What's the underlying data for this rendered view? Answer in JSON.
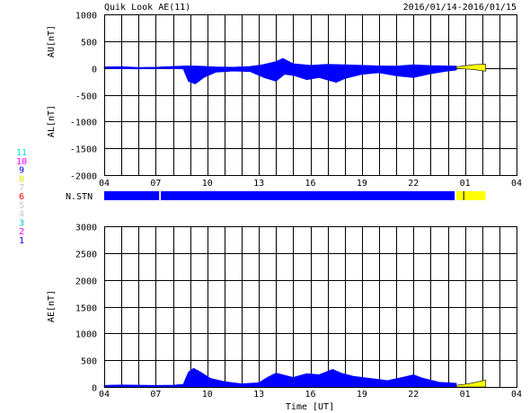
{
  "header": {
    "title": "Quik Look AE(11)",
    "date_range": "2016/01/14-2016/01/15"
  },
  "station_legend": [
    {
      "label": "11",
      "color": "#00e5e5"
    },
    {
      "label": "10",
      "color": "#ff00ff"
    },
    {
      "label": "9",
      "color": "#0000ff"
    },
    {
      "label": "8",
      "color": "#e8e800"
    },
    {
      "label": "7",
      "color": "#c8c8c8"
    },
    {
      "label": "6",
      "color": "#ff0000"
    },
    {
      "label": "5",
      "color": "#c8c8c8"
    },
    {
      "label": "4",
      "color": "#c8c8c8"
    },
    {
      "label": "3",
      "color": "#00c8c8"
    },
    {
      "label": "2",
      "color": "#ff00ff"
    },
    {
      "label": "1",
      "color": "#0000ff"
    }
  ],
  "colors": {
    "main_fill": "#0000ff",
    "recent_fill": "#ffff00",
    "grid": "#000000"
  },
  "chart_data": [
    {
      "type": "area",
      "ylabel": "AU[nT]",
      "ylabel2": "AL[nT]",
      "ylim": [
        -2000,
        1000
      ],
      "yticks": [
        1000,
        500,
        0,
        -500,
        -1000,
        -1500,
        -2000
      ],
      "xlim_hours": [
        4,
        28
      ],
      "xtick_labels": [
        "04",
        "07",
        "10",
        "13",
        "16",
        "19",
        "22",
        "01",
        "04"
      ],
      "grid": true,
      "series": [
        {
          "values_upper": [
            [
              4,
              20
            ],
            [
              5,
              25
            ],
            [
              6,
              10
            ],
            [
              7,
              15
            ],
            [
              8,
              30
            ],
            [
              8.8,
              40
            ],
            [
              9.5,
              35
            ],
            [
              10.5,
              20
            ],
            [
              11.5,
              15
            ],
            [
              12.5,
              30
            ],
            [
              13.2,
              60
            ],
            [
              14,
              120
            ],
            [
              14.4,
              180
            ],
            [
              15,
              80
            ],
            [
              16,
              50
            ],
            [
              17,
              70
            ],
            [
              18,
              60
            ],
            [
              19,
              50
            ],
            [
              20,
              40
            ],
            [
              21,
              35
            ],
            [
              22,
              60
            ],
            [
              23,
              45
            ],
            [
              24.5,
              35
            ]
          ],
          "values_lower": [
            [
              4,
              -10
            ],
            [
              5,
              -15
            ],
            [
              6,
              -20
            ],
            [
              7,
              -10
            ],
            [
              8,
              -15
            ],
            [
              8.6,
              -20
            ],
            [
              8.9,
              -250
            ],
            [
              9.3,
              -300
            ],
            [
              9.8,
              -180
            ],
            [
              10.5,
              -80
            ],
            [
              11.5,
              -60
            ],
            [
              12.5,
              -70
            ],
            [
              13.3,
              -180
            ],
            [
              14,
              -250
            ],
            [
              14.5,
              -120
            ],
            [
              15,
              -140
            ],
            [
              15.8,
              -220
            ],
            [
              16.5,
              -180
            ],
            [
              17.5,
              -270
            ],
            [
              18,
              -200
            ],
            [
              19,
              -120
            ],
            [
              20,
              -90
            ],
            [
              21,
              -150
            ],
            [
              22,
              -180
            ],
            [
              23,
              -110
            ],
            [
              24,
              -60
            ],
            [
              24.5,
              -40
            ]
          ]
        },
        {
          "recent_upper": [
            [
              24.5,
              20
            ],
            [
              25.5,
              60
            ],
            [
              26.2,
              70
            ]
          ],
          "recent_lower": [
            [
              24.5,
              -10
            ],
            [
              25.5,
              -30
            ],
            [
              26.2,
              -60
            ]
          ]
        }
      ]
    },
    {
      "type": "area",
      "ylabel": "AE[nT]",
      "xlabel": "Time [UT]",
      "ylim": [
        0,
        3000
      ],
      "yticks": [
        3000,
        2500,
        2000,
        1500,
        1000,
        500,
        0
      ],
      "xlim_hours": [
        4,
        28
      ],
      "xtick_labels": [
        "04",
        "07",
        "10",
        "13",
        "16",
        "19",
        "22",
        "01",
        "04"
      ],
      "grid": true,
      "values": [
        [
          4,
          30
        ],
        [
          5,
          40
        ],
        [
          6,
          35
        ],
        [
          7,
          30
        ],
        [
          8,
          35
        ],
        [
          8.6,
          50
        ],
        [
          8.9,
          280
        ],
        [
          9.2,
          350
        ],
        [
          9.6,
          280
        ],
        [
          10.2,
          160
        ],
        [
          11,
          100
        ],
        [
          12,
          60
        ],
        [
          13,
          80
        ],
        [
          13.5,
          180
        ],
        [
          14,
          260
        ],
        [
          14.5,
          220
        ],
        [
          15,
          180
        ],
        [
          15.8,
          250
        ],
        [
          16.5,
          230
        ],
        [
          17.3,
          330
        ],
        [
          17.8,
          260
        ],
        [
          18.5,
          200
        ],
        [
          19.5,
          160
        ],
        [
          20.5,
          120
        ],
        [
          21.5,
          190
        ],
        [
          22,
          230
        ],
        [
          22.5,
          170
        ],
        [
          23.5,
          90
        ],
        [
          24.5,
          70
        ]
      ],
      "recent_values": [
        [
          24.5,
          30
        ],
        [
          25.2,
          60
        ],
        [
          25.8,
          100
        ],
        [
          26.2,
          130
        ]
      ]
    }
  ],
  "station_bar": {
    "label": "N.STN",
    "segments": [
      {
        "from_hour": 4,
        "to_hour": 7.2,
        "color": "#0000ff"
      },
      {
        "from_hour": 7.3,
        "to_hour": 24.4,
        "color": "#0000ff"
      },
      {
        "from_hour": 24.5,
        "to_hour": 26.2,
        "color": "#ffff00"
      }
    ]
  }
}
